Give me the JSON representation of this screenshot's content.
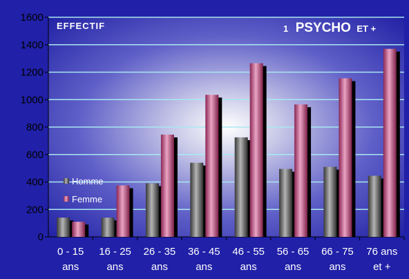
{
  "chart_data": {
    "type": "bar",
    "title_prefix": "1",
    "title_main": "PSYCHO",
    "title_suffix": "ET +",
    "ylabel": "EFFECTIF",
    "ylim": [
      0,
      1600
    ],
    "yticks": [
      "0",
      "200",
      "400",
      "600",
      "800",
      "1000",
      "1200",
      "1400",
      "1600"
    ],
    "grid": true,
    "legend_position": "left",
    "categories": [
      [
        "0 - 15",
        "ans"
      ],
      [
        "16 - 25",
        "ans"
      ],
      [
        "26 - 35",
        "ans"
      ],
      [
        "36 - 45",
        "ans"
      ],
      [
        "46 - 55",
        "ans"
      ],
      [
        "56 - 65",
        "ans"
      ],
      [
        "66 - 75",
        "ans"
      ],
      [
        "76 ans",
        "et +"
      ]
    ],
    "series": [
      {
        "name": "Homme",
        "values": [
          140,
          140,
          390,
          540,
          725,
          495,
          510,
          445
        ]
      },
      {
        "name": "Femme",
        "values": [
          110,
          375,
          745,
          1035,
          1265,
          965,
          1155,
          1370
        ]
      }
    ]
  },
  "colors": {
    "background": "#2020a8",
    "grid_line": "#a8e8f0",
    "homme_dark": "#3a3a3a",
    "homme_light": "#b0b0b0",
    "femme_dark": "#8c2a55",
    "femme_light": "#e8a0c0",
    "shadow": "#000000"
  }
}
